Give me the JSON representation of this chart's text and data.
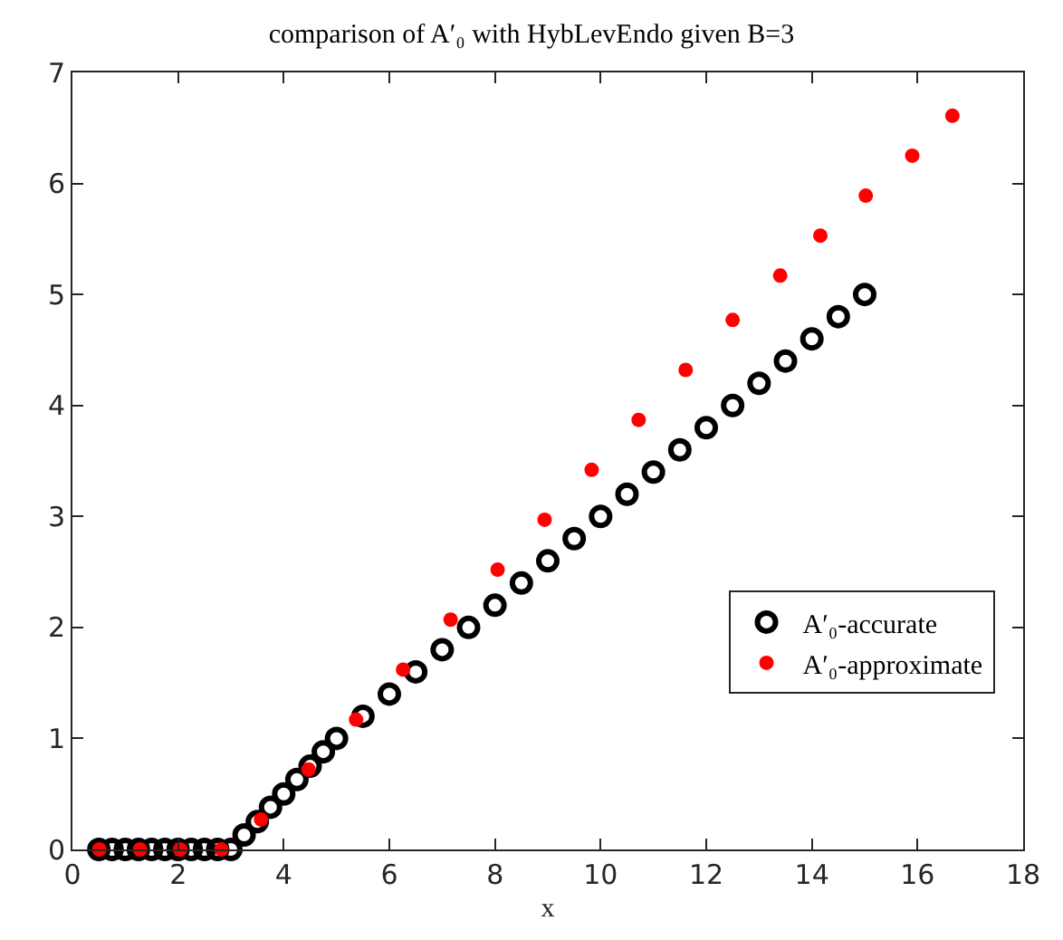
{
  "chart_data": {
    "type": "scatter",
    "title": "comparison of A′₀ with HybLevEndo given B=3",
    "xlabel": "x",
    "xlim": [
      0,
      18
    ],
    "xticks": [
      0,
      2,
      4,
      6,
      8,
      10,
      12,
      14,
      16,
      18
    ],
    "ylim": [
      0,
      7
    ],
    "yticks": [
      0,
      1,
      2,
      3,
      4,
      5,
      6,
      7
    ],
    "legend": "bottom right",
    "marker": "circle",
    "series": [
      {
        "name": "A′₀-accurate",
        "color": "#000000",
        "x": [
          0.5,
          0.75,
          1.0,
          1.25,
          1.5,
          1.75,
          2.0,
          2.25,
          2.5,
          2.75,
          3.0,
          3.25,
          3.5,
          3.75,
          4.0,
          4.25,
          4.5,
          4.75,
          5.0,
          5.5,
          6.0,
          6.5,
          7.0,
          7.5,
          8.0,
          8.5,
          9.0,
          9.5,
          10.0,
          10.5,
          11.0,
          11.5,
          12.0,
          12.5,
          13.0,
          13.5,
          14.0,
          14.5,
          15.0
        ],
        "values": [
          0,
          0,
          0,
          0,
          0,
          0,
          0,
          0,
          0,
          0,
          0,
          0.13,
          0.25,
          0.38,
          0.5,
          0.63,
          0.75,
          0.88,
          1.0,
          1.2,
          1.4,
          1.6,
          1.8,
          2.0,
          2.2,
          2.4,
          2.6,
          2.8,
          3.0,
          3.2,
          3.4,
          3.6,
          3.8,
          4.0,
          4.2,
          4.4,
          4.6,
          4.8,
          5.0
        ]
      },
      {
        "name": "A′₀-approximate",
        "color": "#ff0000",
        "x": [
          0.51,
          1.28,
          2.04,
          2.82,
          3.57,
          4.47,
          5.37,
          6.26,
          7.16,
          8.05,
          8.94,
          9.83,
          10.72,
          11.61,
          12.5,
          13.4,
          14.16,
          15.02,
          15.9,
          16.66
        ],
        "values": [
          0,
          0,
          0,
          0,
          0.27,
          0.72,
          1.17,
          1.62,
          2.07,
          2.52,
          2.97,
          3.42,
          3.87,
          4.32,
          4.77,
          5.17,
          5.53,
          5.89,
          6.25,
          6.61
        ]
      }
    ]
  }
}
